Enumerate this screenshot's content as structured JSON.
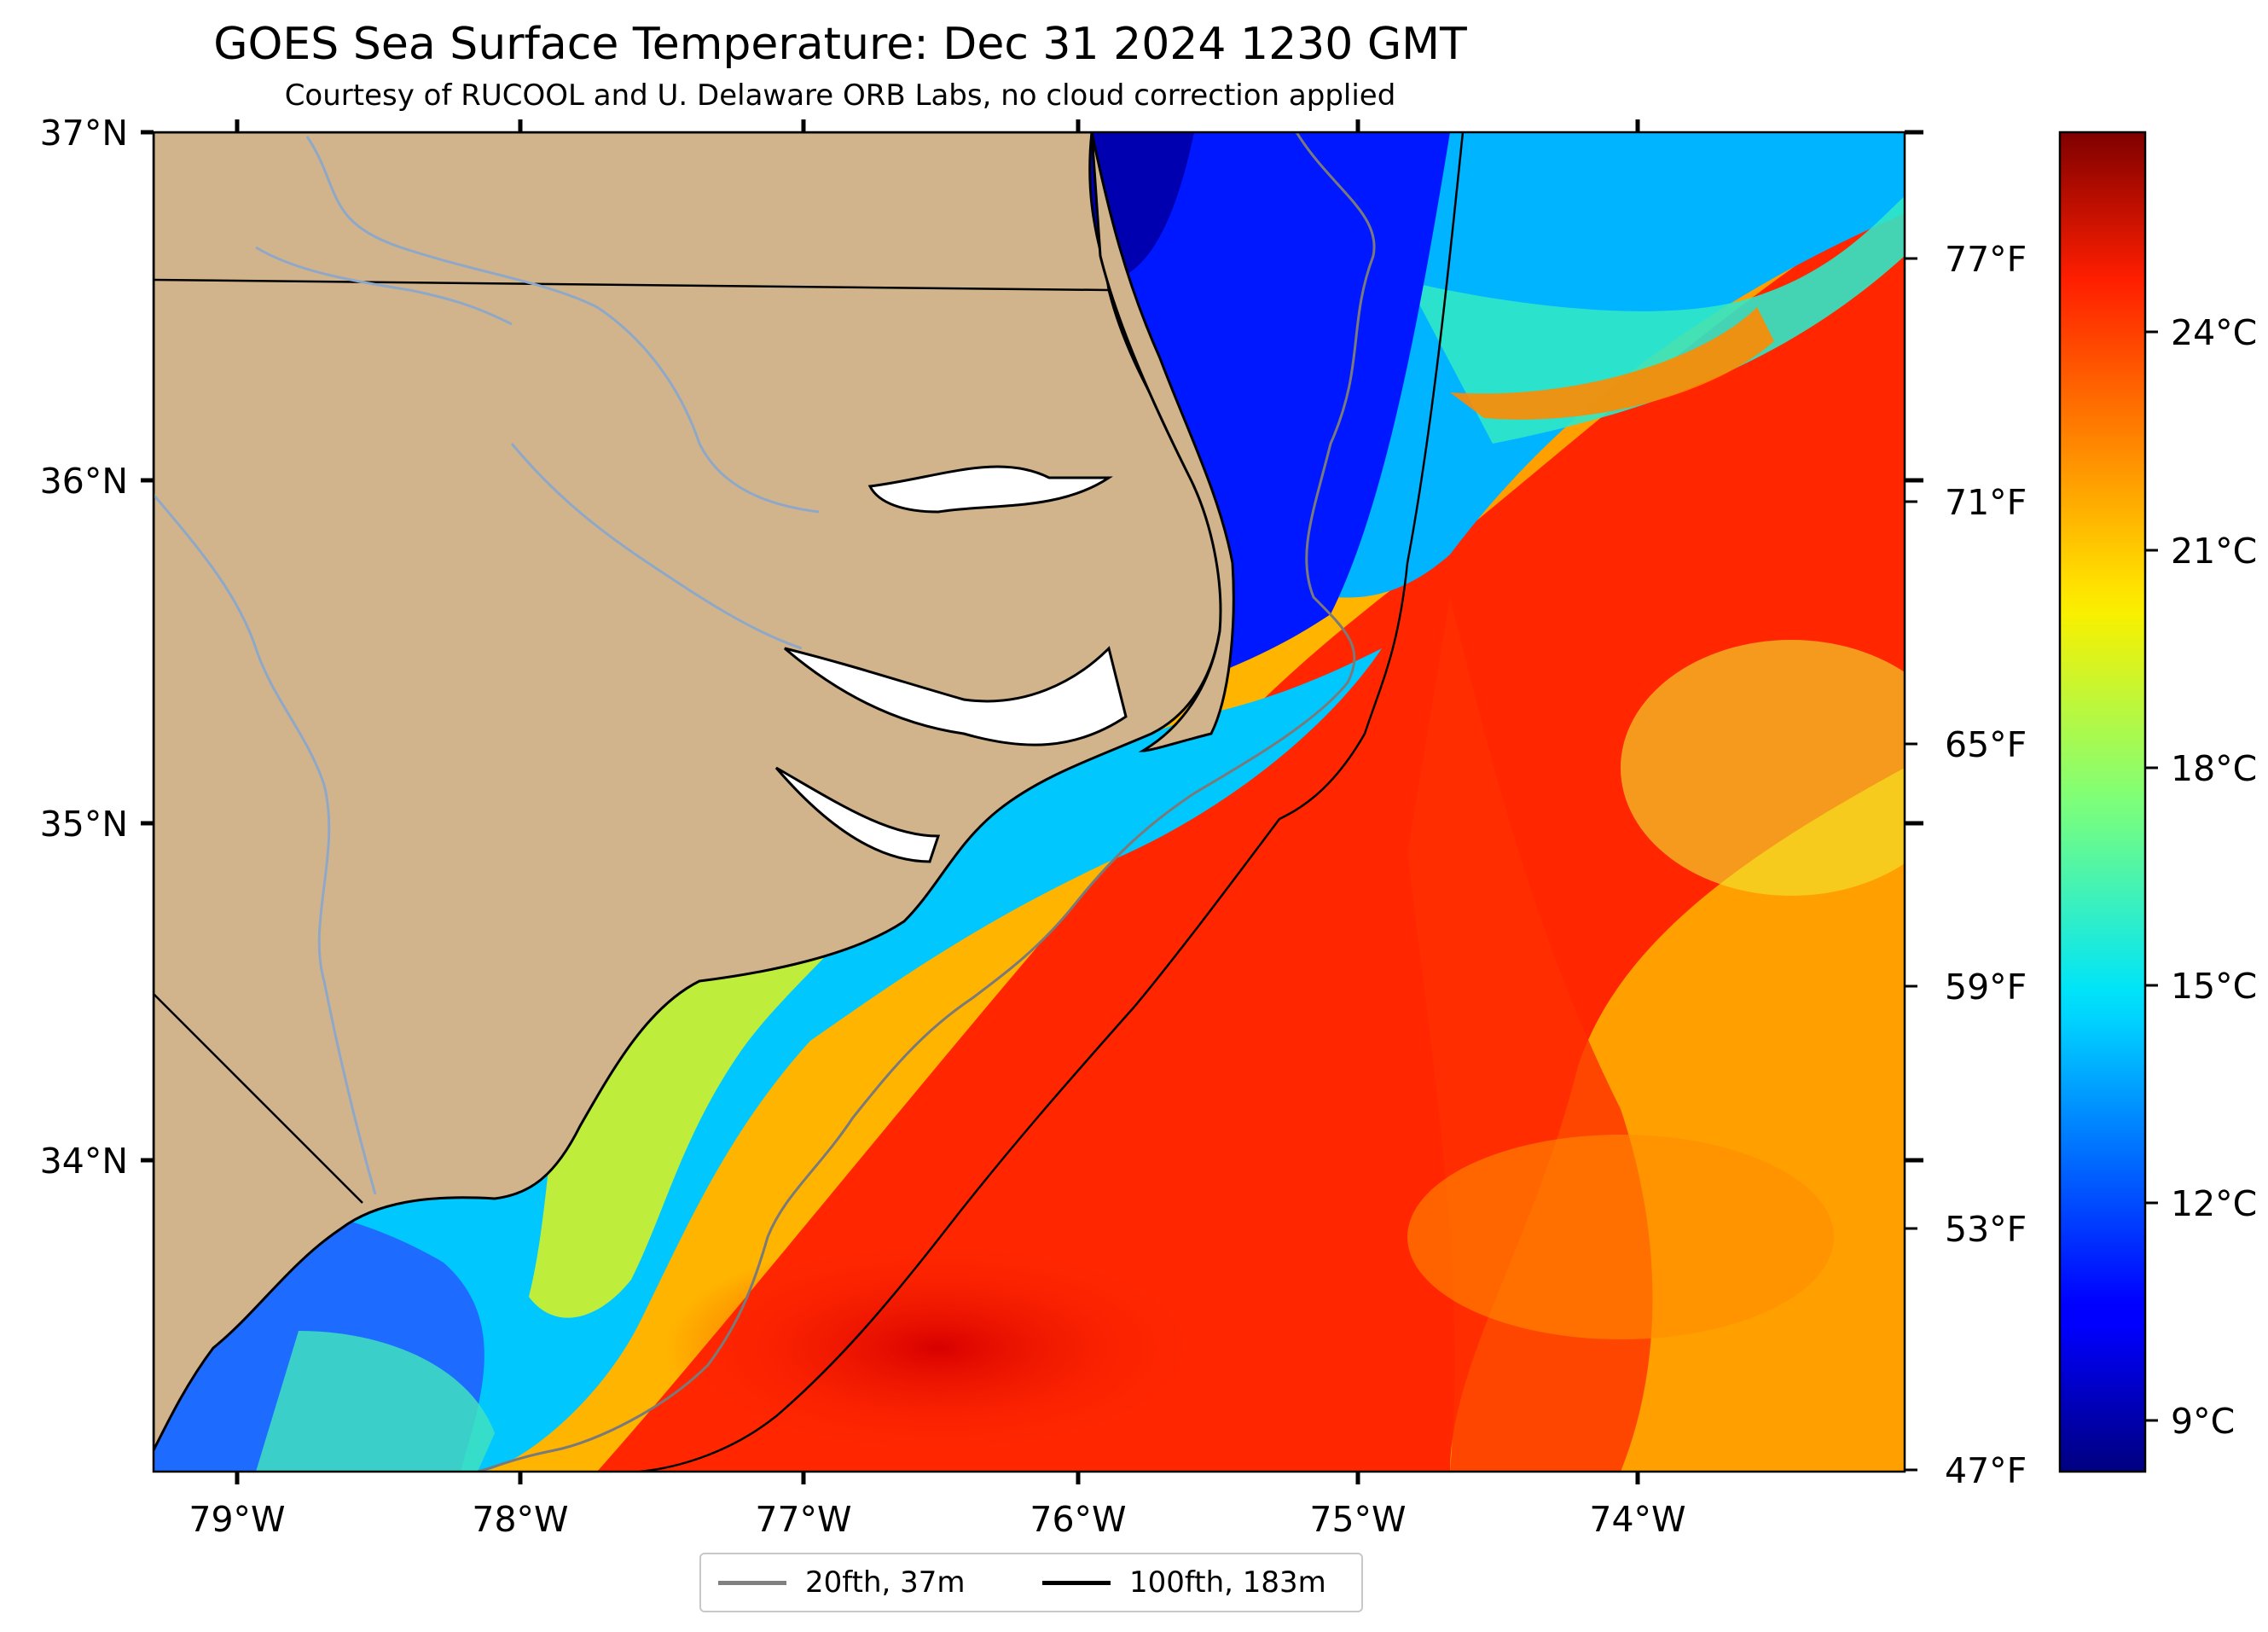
{
  "title": "GOES Sea Surface Temperature: Dec 31 2024 1230 GMT",
  "subtitle": "Courtesy of RUCOOL and U. Delaware ORB Labs, no cloud correction applied",
  "map": {
    "lon_range": [
      -79.3,
      -73.1
    ],
    "lat_range": [
      33.1,
      37.0
    ],
    "land_color": "#d2b48c",
    "lat_labels": [
      "37°N",
      "36°N",
      "35°N",
      "34°N"
    ],
    "lon_labels": [
      "79°W",
      "78°W",
      "77°W",
      "76°W",
      "75°W",
      "74°W"
    ],
    "fahrenheit_labels": [
      "77°F",
      "71°F",
      "65°F",
      "59°F",
      "53°F",
      "47°F"
    ]
  },
  "colorbar": {
    "colormap": "jet",
    "range_c": [
      8.3,
      27.0
    ],
    "labels": [
      "24°C",
      "21°C",
      "18°C",
      "15°C",
      "12°C",
      "9°C"
    ]
  },
  "legend": {
    "items": [
      {
        "label": "20fth, 37m",
        "color": "#808080"
      },
      {
        "label": "100fth, 183m",
        "color": "#000000"
      }
    ]
  }
}
